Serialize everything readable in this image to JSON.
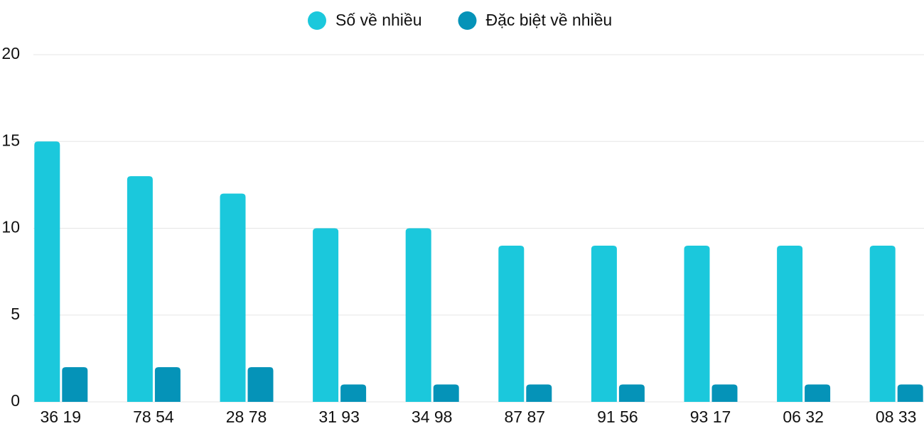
{
  "chart_data": {
    "type": "bar",
    "categories": [
      "36 19",
      "78 54",
      "28 78",
      "31 93",
      "34 98",
      "87 87",
      "91 56",
      "93 17",
      "06 32",
      "08 33"
    ],
    "series": [
      {
        "name": "Số về nhiều",
        "color": "#1bc8dc",
        "values": [
          15,
          13,
          12,
          10,
          10,
          9,
          9,
          9,
          9,
          9
        ]
      },
      {
        "name": "Đặc biệt về nhiều",
        "color": "#0593b8",
        "values": [
          2,
          2,
          2,
          1,
          1,
          1,
          1,
          1,
          1,
          1
        ]
      }
    ],
    "ylim": [
      0,
      20
    ],
    "yticks": [
      0,
      5,
      10,
      15,
      20
    ],
    "grid": true,
    "legend": "top"
  }
}
